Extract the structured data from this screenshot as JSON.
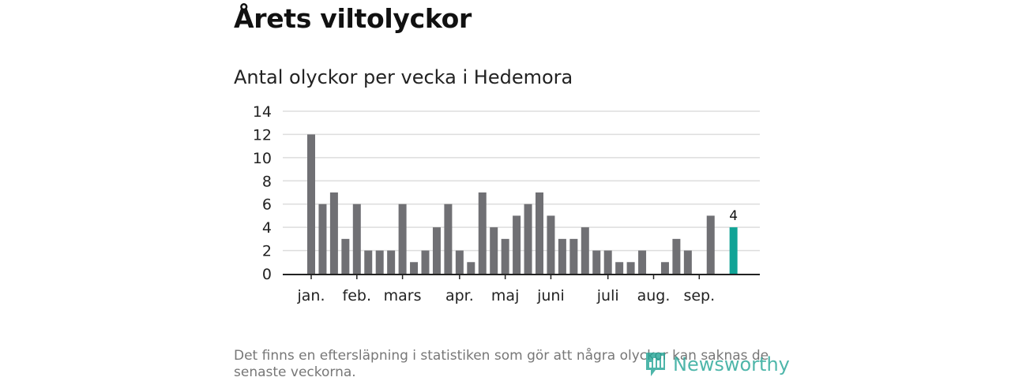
{
  "title": "Årets viltolyckor",
  "subtitle": "Antal olyckor per vecka i Hedemora",
  "footnote": "Det finns en eftersläpning i statistiken som gör att några olyckor kan saknas de senaste veckorna.",
  "brand": "Newsworthy",
  "colors": {
    "bar": "#707074",
    "highlight": "#11a396",
    "grid": "#dddddd",
    "axis": "#222222",
    "brand": "#23a596"
  },
  "chart_data": {
    "type": "bar",
    "title": "Antal olyckor per vecka i Hedemora",
    "xlabel": "",
    "ylabel": "",
    "ylim": [
      0,
      14
    ],
    "yticks": [
      0,
      2,
      4,
      6,
      8,
      10,
      12,
      14
    ],
    "grid": true,
    "legend": "none",
    "weeks": [
      1,
      2,
      3,
      4,
      5,
      6,
      7,
      8,
      9,
      10,
      11,
      12,
      13,
      14,
      15,
      16,
      17,
      18,
      19,
      20,
      21,
      22,
      23,
      24,
      25,
      26,
      27,
      28,
      29,
      30,
      31,
      32,
      33,
      34,
      35,
      36,
      37,
      38
    ],
    "values": [
      12,
      6,
      7,
      3,
      6,
      2,
      2,
      2,
      6,
      1,
      2,
      4,
      6,
      2,
      1,
      7,
      4,
      3,
      5,
      6,
      7,
      5,
      3,
      3,
      4,
      2,
      2,
      1,
      1,
      2,
      0,
      1,
      3,
      2,
      0,
      5,
      0,
      4
    ],
    "highlight_week": 38,
    "highlight_label": "4",
    "month_ticks": [
      {
        "label": "jan.",
        "week": 1
      },
      {
        "label": "feb.",
        "week": 5
      },
      {
        "label": "mars",
        "week": 9
      },
      {
        "label": "apr.",
        "week": 14
      },
      {
        "label": "maj",
        "week": 18
      },
      {
        "label": "juni",
        "week": 22
      },
      {
        "label": "juli",
        "week": 27
      },
      {
        "label": "aug.",
        "week": 31
      },
      {
        "label": "sep.",
        "week": 35
      }
    ]
  }
}
